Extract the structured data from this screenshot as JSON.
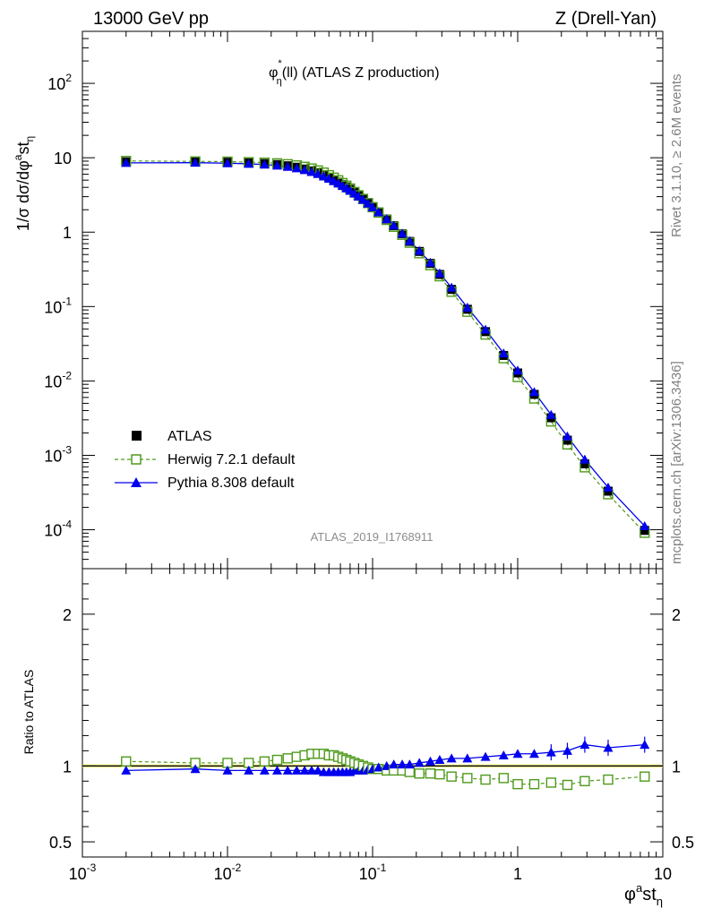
{
  "header": {
    "left": "13000 GeV pp",
    "right": "Z (Drell-Yan)"
  },
  "side_text": {
    "rivet": "Rivet 3.1.10, ≥ 2.6M events",
    "mcplots": "mcplots.cern.ch [arXiv:1306.3436]"
  },
  "colors": {
    "data": "#000000",
    "herwig": "#4f9a1c",
    "pythia": "#0000ee",
    "band": "#ffff66"
  },
  "chart_data": [
    {
      "type": "line",
      "title_pre": "φ",
      "title_sup": "*",
      "title_sub": "η",
      "title_post": "(ll) (ATLAS Z production)",
      "analysis_label": "ATLAS_2019_I1768911",
      "ylabel_parts": [
        "1/σ dσ/dφ",
        "a",
        "st",
        "η"
      ],
      "xscale": "log",
      "yscale": "log",
      "xlim": [
        0.001,
        10
      ],
      "ylim": [
        3e-05,
        500
      ],
      "grid": false,
      "legend_position": "lower-left",
      "ytick_labels": [
        {
          "base": "10",
          "exp": "-4",
          "value": 0.0001
        },
        {
          "base": "10",
          "exp": "-3",
          "value": 0.001
        },
        {
          "base": "10",
          "exp": "-2",
          "value": 0.01
        },
        {
          "base": "10",
          "exp": "-1",
          "value": 0.1
        },
        {
          "base": "1",
          "exp": "",
          "value": 1
        },
        {
          "base": "10",
          "exp": "",
          "value": 10
        },
        {
          "base": "10",
          "exp": "2",
          "value": 100
        }
      ],
      "x": [
        0.002,
        0.006,
        0.01,
        0.014,
        0.018,
        0.022,
        0.026,
        0.03,
        0.034,
        0.038,
        0.042,
        0.046,
        0.05,
        0.054,
        0.058,
        0.062,
        0.066,
        0.07,
        0.075,
        0.08,
        0.086,
        0.093,
        0.1,
        0.11,
        0.125,
        0.14,
        0.16,
        0.18,
        0.21,
        0.25,
        0.29,
        0.35,
        0.45,
        0.6,
        0.8,
        1.0,
        1.3,
        1.7,
        2.2,
        2.9,
        4.2,
        7.5
      ],
      "series": [
        {
          "name": "ATLAS",
          "marker": "filled-square",
          "values": [
            8.8,
            8.75,
            8.7,
            8.55,
            8.35,
            8.1,
            7.8,
            7.45,
            7.05,
            6.65,
            6.25,
            5.85,
            5.45,
            5.05,
            4.7,
            4.35,
            4.05,
            3.75,
            3.4,
            3.1,
            2.8,
            2.48,
            2.2,
            1.87,
            1.5,
            1.22,
            0.95,
            0.75,
            0.55,
            0.38,
            0.27,
            0.17,
            0.092,
            0.046,
            0.022,
            0.0128,
            0.0066,
            0.0032,
            0.0016,
            0.00077,
            0.00033,
            9.8e-05
          ]
        },
        {
          "name": "Herwig 7.2.1 default",
          "marker": "open-square",
          "values": [
            9.06,
            8.93,
            8.87,
            8.72,
            8.6,
            8.42,
            8.19,
            7.9,
            7.55,
            7.18,
            6.75,
            6.32,
            5.83,
            5.4,
            4.98,
            4.57,
            4.21,
            3.86,
            3.47,
            3.13,
            2.8,
            2.46,
            2.16,
            1.83,
            1.46,
            1.18,
            0.92,
            0.72,
            0.52,
            0.36,
            0.255,
            0.158,
            0.085,
            0.042,
            0.0202,
            0.0113,
            0.0058,
            0.00285,
            0.0014,
            0.00069,
            0.0003,
            9.1e-05
          ]
        },
        {
          "name": "Pythia 8.308 default",
          "marker": "filled-triangle",
          "values": [
            8.54,
            8.58,
            8.44,
            8.29,
            8.1,
            7.86,
            7.57,
            7.23,
            6.84,
            6.45,
            6.06,
            5.62,
            5.23,
            4.85,
            4.51,
            4.18,
            3.89,
            3.6,
            3.3,
            3.01,
            2.72,
            2.43,
            2.16,
            1.85,
            1.5,
            1.23,
            0.96,
            0.76,
            0.56,
            0.39,
            0.28,
            0.18,
            0.097,
            0.049,
            0.0235,
            0.0138,
            0.0071,
            0.0035,
            0.0018,
            0.00088,
            0.00037,
            0.000112
          ]
        }
      ]
    },
    {
      "type": "line",
      "title": "",
      "xlabel_parts": [
        "φ",
        "a",
        "st",
        "η"
      ],
      "ylabel": "Ratio to ATLAS",
      "xscale": "log",
      "xlim": [
        0.001,
        10
      ],
      "ylim": [
        0.4,
        2.3
      ],
      "ytick_labels": [
        "0.5",
        "1",
        "2"
      ],
      "ytick_values": [
        0.5,
        1,
        2
      ],
      "xtick_labels": [
        {
          "base": "10",
          "exp": "-3",
          "value": 0.001
        },
        {
          "base": "10",
          "exp": "-2",
          "value": 0.01
        },
        {
          "base": "10",
          "exp": "-1",
          "value": 0.1
        },
        {
          "base": "1",
          "exp": "",
          "value": 1
        },
        {
          "base": "10",
          "exp": "",
          "value": 10
        }
      ],
      "series": [
        {
          "name": "Herwig 7.2.1 default",
          "values": [
            1.03,
            1.02,
            1.02,
            1.02,
            1.03,
            1.04,
            1.05,
            1.06,
            1.07,
            1.08,
            1.08,
            1.08,
            1.07,
            1.07,
            1.06,
            1.05,
            1.04,
            1.03,
            1.02,
            1.01,
            1.0,
            0.99,
            0.98,
            0.98,
            0.97,
            0.97,
            0.97,
            0.96,
            0.95,
            0.95,
            0.945,
            0.93,
            0.92,
            0.91,
            0.92,
            0.88,
            0.88,
            0.89,
            0.875,
            0.9,
            0.91,
            0.93
          ]
        },
        {
          "name": "Pythia 8.308 default",
          "values": [
            0.97,
            0.98,
            0.97,
            0.97,
            0.97,
            0.97,
            0.97,
            0.97,
            0.97,
            0.97,
            0.97,
            0.96,
            0.96,
            0.96,
            0.96,
            0.96,
            0.96,
            0.96,
            0.97,
            0.97,
            0.97,
            0.98,
            0.98,
            0.99,
            1.0,
            1.01,
            1.01,
            1.01,
            1.02,
            1.03,
            1.04,
            1.05,
            1.05,
            1.06,
            1.07,
            1.08,
            1.08,
            1.09,
            1.1,
            1.14,
            1.12,
            1.14
          ]
        }
      ]
    }
  ]
}
